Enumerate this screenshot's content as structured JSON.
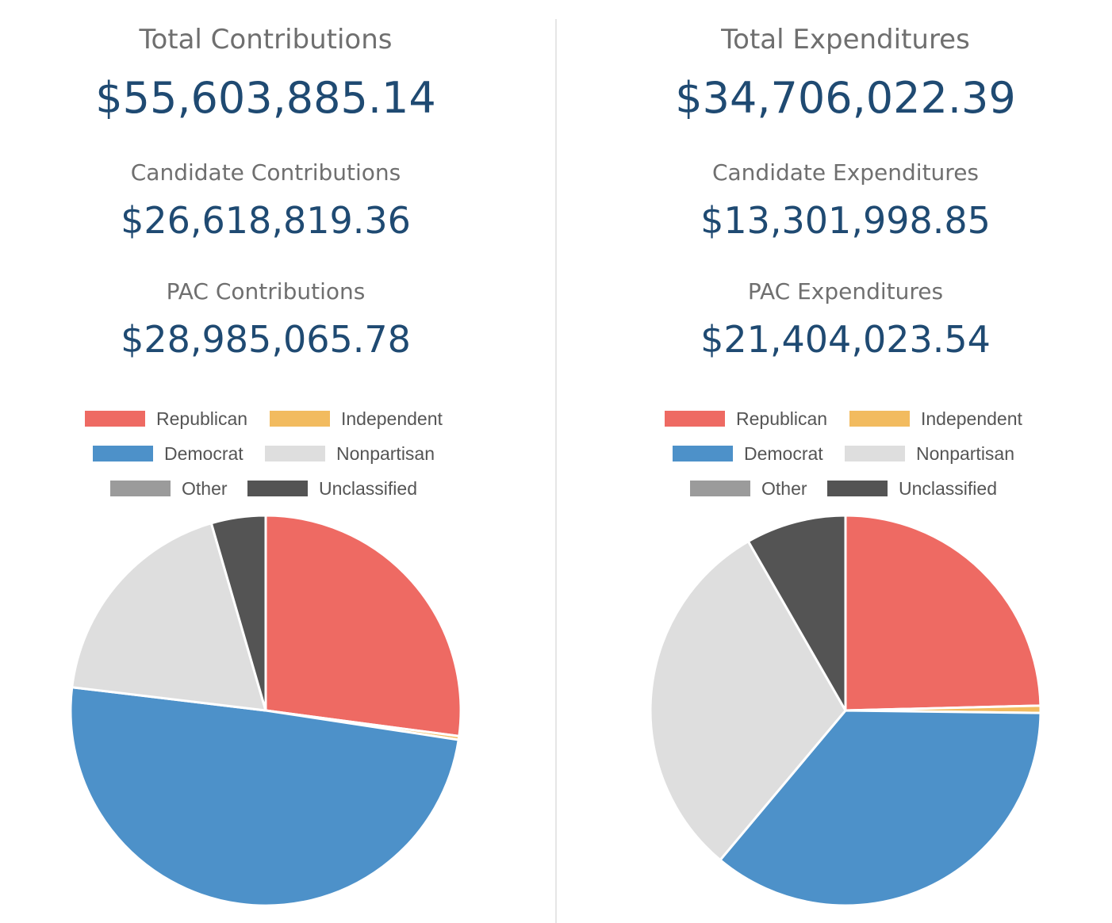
{
  "legend_labels": [
    "Republican",
    "Independent",
    "Democrat",
    "Nonpartisan",
    "Other",
    "Unclassified"
  ],
  "colors": {
    "Republican": "#ee6a63",
    "Independent": "#f2bb5f",
    "Democrat": "#4d91c9",
    "Nonpartisan": "#dedede",
    "Other": "#9b9b9b",
    "Unclassified": "#545454"
  },
  "contributions": {
    "total_label": "Total Contributions",
    "total_value": "$55,603,885.14",
    "candidate_label": "Candidate Contributions",
    "candidate_value": "$26,618,819.36",
    "pac_label": "PAC Contributions",
    "pac_value": "$28,985,065.78"
  },
  "expenditures": {
    "total_label": "Total Expenditures",
    "total_value": "$34,706,022.39",
    "candidate_label": "Candidate Expenditures",
    "candidate_value": "$13,301,998.85",
    "pac_label": "PAC Expenditures",
    "pac_value": "$21,404,023.54"
  },
  "chart_data": [
    {
      "type": "pie",
      "categories": [
        "Republican",
        "Independent",
        "Democrat",
        "Nonpartisan",
        "Other",
        "Unclassified"
      ],
      "values": [
        27.1,
        0.3,
        49.5,
        18.6,
        0.0,
        4.5
      ],
      "legend": "top"
    },
    {
      "type": "pie",
      "categories": [
        "Republican",
        "Independent",
        "Democrat",
        "Nonpartisan",
        "Other",
        "Unclassified"
      ],
      "values": [
        24.6,
        0.6,
        35.9,
        30.6,
        0.0,
        8.3
      ],
      "legend": "top"
    }
  ]
}
